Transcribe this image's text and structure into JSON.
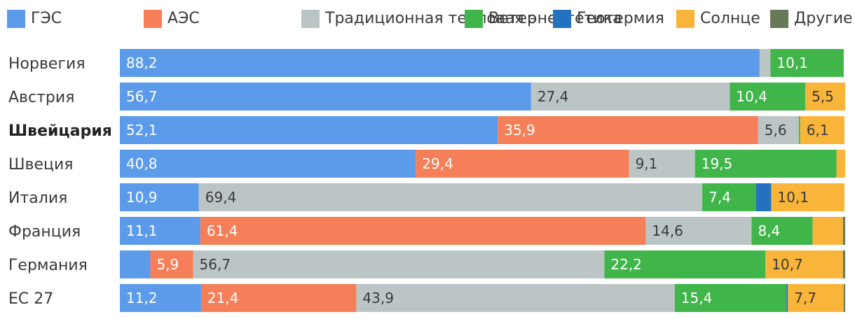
{
  "chart_data": {
    "type": "bar",
    "orientation": "horizontal",
    "stacked": true,
    "title": "",
    "xlabel": "",
    "ylabel": "",
    "xlim": [
      0,
      100
    ],
    "grid": false,
    "legend_position": "top",
    "categories": [
      "Норвегия",
      "Австрия",
      "Швейцария",
      "Швеция",
      "Италия",
      "Франция",
      "Германия",
      "ЕС 27"
    ],
    "highlight_category": "Швейцария",
    "series": [
      {
        "name": "ГЭС",
        "color": "#5b9bea",
        "values": [
          88.2,
          56.7,
          52.1,
          40.8,
          10.9,
          11.1,
          4.2,
          11.2
        ],
        "labels": [
          "88,2",
          "56,7",
          "52,1",
          "40,8",
          "10,9",
          "11,1",
          "",
          "11,2"
        ]
      },
      {
        "name": "АЭС",
        "color": "#f47f58",
        "values": [
          0,
          0,
          35.9,
          29.4,
          0,
          61.4,
          5.9,
          21.4
        ],
        "labels": [
          "",
          "",
          "35,9",
          "29,4",
          "",
          "61,4",
          "5,9",
          "21,4"
        ]
      },
      {
        "name": "Традиционная тепловая энергетика",
        "color": "#bcc5c6",
        "values": [
          1.5,
          27.4,
          5.6,
          9.1,
          69.4,
          14.6,
          56.7,
          43.9
        ],
        "labels": [
          "",
          "27,4",
          "5,6",
          "9,1",
          "69,4",
          "14,6",
          "56,7",
          "43,9"
        ]
      },
      {
        "name": "Ветер",
        "color": "#40b54a",
        "values": [
          10.1,
          10.4,
          0.2,
          19.5,
          7.4,
          8.4,
          22.2,
          15.4
        ],
        "labels": [
          "10,1",
          "10,4",
          "",
          "19,5",
          "7,4",
          "8,4",
          "22,2",
          "15,4"
        ]
      },
      {
        "name": "Геотермия",
        "color": "#2471c0",
        "values": [
          0,
          0,
          0,
          0,
          2.1,
          0,
          0,
          0.2
        ],
        "labels": [
          "",
          "",
          "",
          "",
          "",
          "",
          "",
          ""
        ]
      },
      {
        "name": "Солнце",
        "color": "#f9b43a",
        "values": [
          0,
          5.5,
          6.1,
          1.2,
          10.1,
          4.2,
          10.7,
          7.7
        ],
        "labels": [
          "",
          "5,5",
          "6,1",
          "",
          "10,1",
          "",
          "10,7",
          "7,7"
        ]
      },
      {
        "name": "Другие",
        "color": "#667a5a",
        "values": [
          0,
          0,
          0,
          0,
          0,
          0.3,
          0.3,
          0.2
        ],
        "labels": [
          "",
          "",
          "",
          "",
          "",
          "",
          "",
          ""
        ]
      }
    ]
  }
}
